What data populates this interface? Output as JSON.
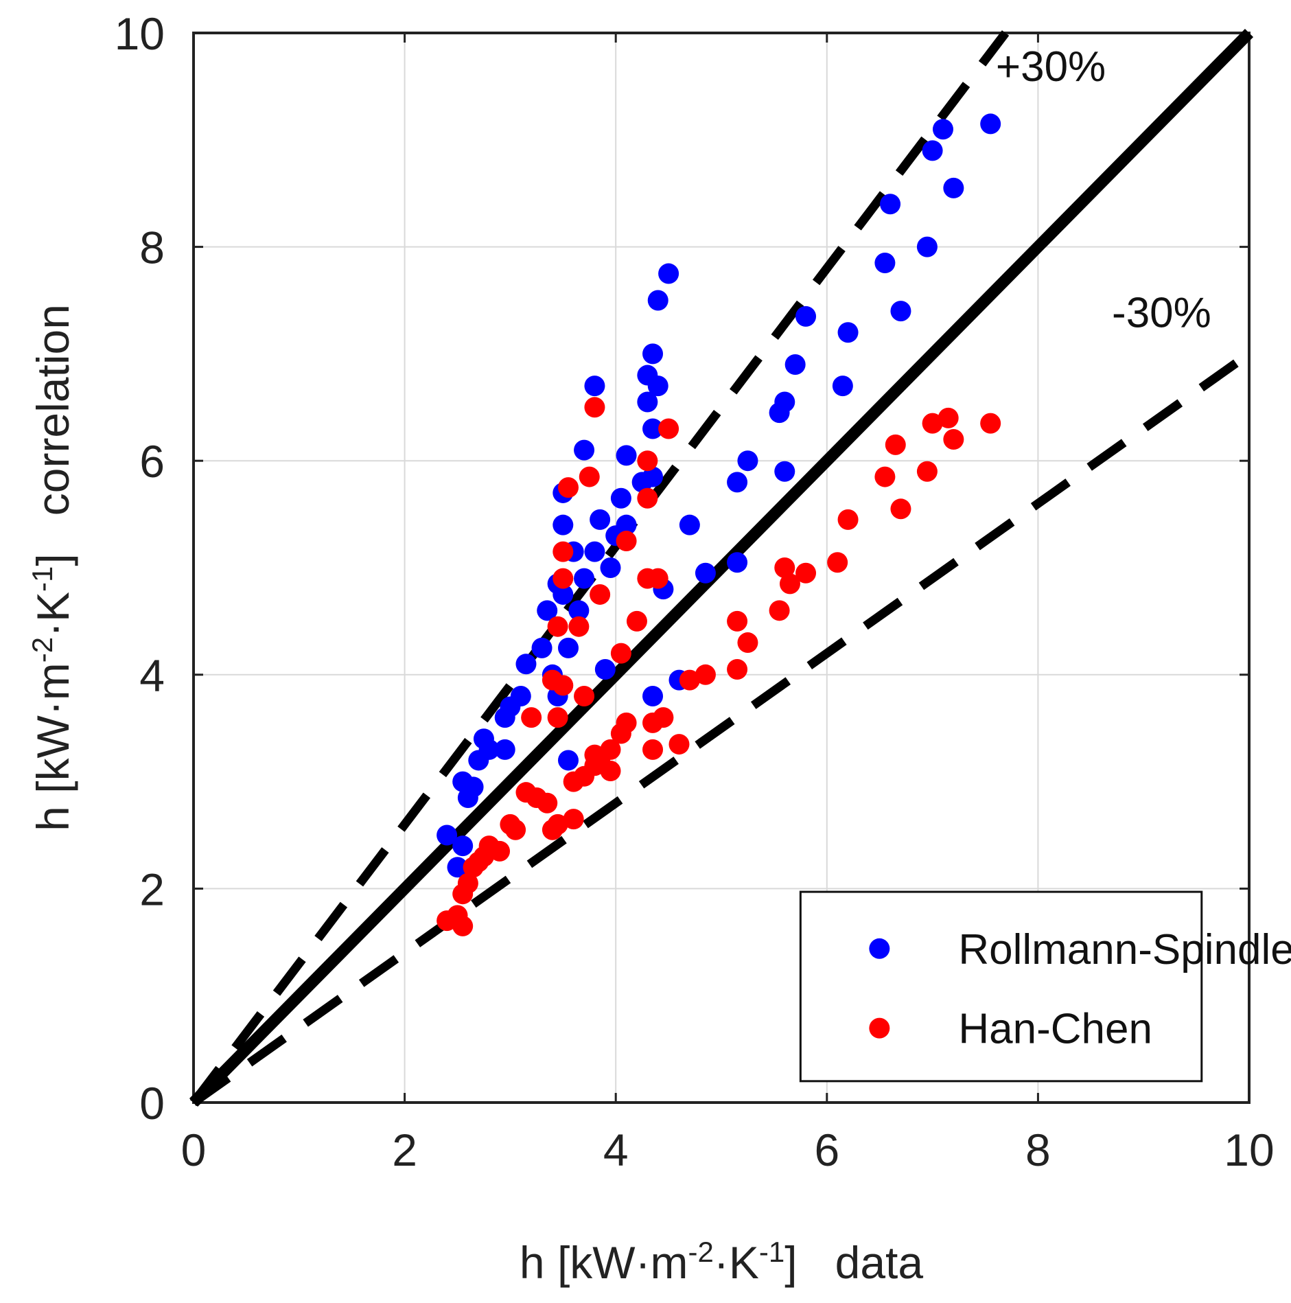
{
  "chart_data": {
    "type": "scatter",
    "xlabel": {
      "prefix": "h [kW·m",
      "exp1": "-2",
      "mid": "·K",
      "exp2": "-1",
      "suffix": "]   data"
    },
    "ylabel": {
      "prefix": "h [kW·m",
      "exp1": "-2",
      "mid": "·K",
      "exp2": "-1",
      "suffix": "]   correlation"
    },
    "xlim": [
      0,
      10
    ],
    "ylim": [
      0,
      10
    ],
    "xticks": [
      "0",
      "2",
      "4",
      "6",
      "8",
      "10"
    ],
    "yticks": [
      "0",
      "2",
      "4",
      "6",
      "8",
      "10"
    ],
    "grid": true,
    "legend_position": "bottom-right",
    "reference_lines": [
      {
        "name": "parity",
        "slope": 1.0,
        "style": "solid",
        "label": ""
      },
      {
        "name": "plus30",
        "slope": 1.3,
        "style": "dashed",
        "label": "+30%"
      },
      {
        "name": "minus30",
        "slope": 0.7,
        "style": "dashed",
        "label": "-30%"
      }
    ],
    "series": [
      {
        "name": "Rollmann-Spindler",
        "color": "#0000ff",
        "points": [
          [
            2.4,
            2.5
          ],
          [
            2.5,
            2.2
          ],
          [
            2.55,
            2.4
          ],
          [
            2.6,
            2.85
          ],
          [
            2.55,
            3.0
          ],
          [
            2.65,
            2.95
          ],
          [
            2.7,
            3.2
          ],
          [
            2.75,
            3.4
          ],
          [
            2.8,
            3.3
          ],
          [
            2.95,
            3.3
          ],
          [
            2.95,
            3.6
          ],
          [
            3.0,
            3.7
          ],
          [
            3.1,
            3.8
          ],
          [
            3.15,
            4.1
          ],
          [
            3.3,
            4.25
          ],
          [
            3.35,
            4.6
          ],
          [
            3.4,
            4.0
          ],
          [
            3.45,
            3.8
          ],
          [
            3.45,
            4.85
          ],
          [
            3.5,
            4.75
          ],
          [
            3.55,
            4.25
          ],
          [
            3.5,
            5.4
          ],
          [
            3.5,
            5.7
          ],
          [
            3.55,
            3.2
          ],
          [
            3.6,
            5.15
          ],
          [
            3.65,
            4.6
          ],
          [
            3.7,
            4.9
          ],
          [
            3.7,
            6.1
          ],
          [
            3.8,
            5.15
          ],
          [
            3.85,
            5.45
          ],
          [
            3.8,
            6.7
          ],
          [
            3.9,
            4.05
          ],
          [
            3.95,
            5.0
          ],
          [
            4.0,
            5.3
          ],
          [
            4.05,
            5.65
          ],
          [
            4.1,
            5.4
          ],
          [
            4.1,
            6.05
          ],
          [
            4.25,
            5.8
          ],
          [
            4.3,
            6.8
          ],
          [
            4.3,
            6.55
          ],
          [
            4.35,
            6.3
          ],
          [
            4.35,
            5.85
          ],
          [
            4.35,
            7.0
          ],
          [
            4.4,
            6.7
          ],
          [
            4.35,
            3.8
          ],
          [
            4.45,
            4.8
          ],
          [
            4.4,
            7.5
          ],
          [
            4.5,
            7.75
          ],
          [
            4.6,
            3.95
          ],
          [
            4.7,
            5.4
          ],
          [
            4.85,
            4.95
          ],
          [
            5.15,
            5.8
          ],
          [
            5.15,
            5.05
          ],
          [
            5.25,
            6.0
          ],
          [
            5.55,
            6.45
          ],
          [
            5.6,
            6.55
          ],
          [
            5.6,
            5.9
          ],
          [
            5.7,
            6.9
          ],
          [
            5.8,
            7.35
          ],
          [
            6.15,
            6.7
          ],
          [
            6.2,
            7.2
          ],
          [
            6.55,
            7.85
          ],
          [
            6.6,
            8.4
          ],
          [
            6.7,
            7.4
          ],
          [
            6.95,
            8.0
          ],
          [
            7.0,
            8.9
          ],
          [
            7.1,
            9.1
          ],
          [
            7.2,
            8.55
          ],
          [
            7.55,
            9.15
          ]
        ]
      },
      {
        "name": "Han-Chen",
        "color": "#ff0000",
        "points": [
          [
            2.4,
            1.7
          ],
          [
            2.5,
            1.75
          ],
          [
            2.55,
            1.65
          ],
          [
            2.55,
            1.95
          ],
          [
            2.6,
            2.05
          ],
          [
            2.65,
            2.2
          ],
          [
            2.7,
            2.25
          ],
          [
            2.75,
            2.3
          ],
          [
            2.8,
            2.4
          ],
          [
            2.9,
            2.35
          ],
          [
            3.0,
            2.6
          ],
          [
            3.05,
            2.55
          ],
          [
            3.15,
            2.9
          ],
          [
            3.2,
            3.6
          ],
          [
            3.25,
            2.85
          ],
          [
            3.35,
            2.8
          ],
          [
            3.4,
            2.55
          ],
          [
            3.45,
            2.6
          ],
          [
            3.45,
            3.6
          ],
          [
            3.4,
            3.95
          ],
          [
            3.45,
            4.45
          ],
          [
            3.5,
            3.9
          ],
          [
            3.5,
            4.9
          ],
          [
            3.5,
            5.15
          ],
          [
            3.55,
            5.75
          ],
          [
            3.6,
            2.65
          ],
          [
            3.6,
            3.0
          ],
          [
            3.65,
            4.45
          ],
          [
            3.7,
            3.8
          ],
          [
            3.7,
            3.05
          ],
          [
            3.75,
            5.85
          ],
          [
            3.8,
            3.15
          ],
          [
            3.8,
            3.25
          ],
          [
            3.85,
            3.2
          ],
          [
            3.85,
            4.75
          ],
          [
            3.8,
            6.5
          ],
          [
            3.95,
            3.1
          ],
          [
            3.95,
            3.3
          ],
          [
            4.05,
            4.2
          ],
          [
            4.05,
            3.45
          ],
          [
            4.1,
            3.55
          ],
          [
            4.1,
            5.25
          ],
          [
            4.2,
            4.5
          ],
          [
            4.3,
            4.9
          ],
          [
            4.3,
            6.0
          ],
          [
            4.3,
            5.65
          ],
          [
            4.35,
            3.3
          ],
          [
            4.35,
            3.55
          ],
          [
            4.4,
            4.9
          ],
          [
            4.45,
            3.6
          ],
          [
            4.5,
            6.3
          ],
          [
            4.6,
            3.35
          ],
          [
            4.7,
            3.95
          ],
          [
            4.85,
            4.0
          ],
          [
            5.15,
            4.05
          ],
          [
            5.15,
            4.5
          ],
          [
            5.25,
            4.3
          ],
          [
            5.55,
            4.6
          ],
          [
            5.6,
            5.0
          ],
          [
            5.65,
            4.85
          ],
          [
            5.8,
            4.95
          ],
          [
            6.1,
            5.05
          ],
          [
            6.2,
            5.45
          ],
          [
            6.55,
            5.85
          ],
          [
            6.65,
            6.15
          ],
          [
            6.7,
            5.55
          ],
          [
            6.95,
            5.9
          ],
          [
            7.0,
            6.35
          ],
          [
            7.15,
            6.4
          ],
          [
            7.2,
            6.2
          ],
          [
            7.55,
            6.35
          ]
        ]
      }
    ]
  }
}
